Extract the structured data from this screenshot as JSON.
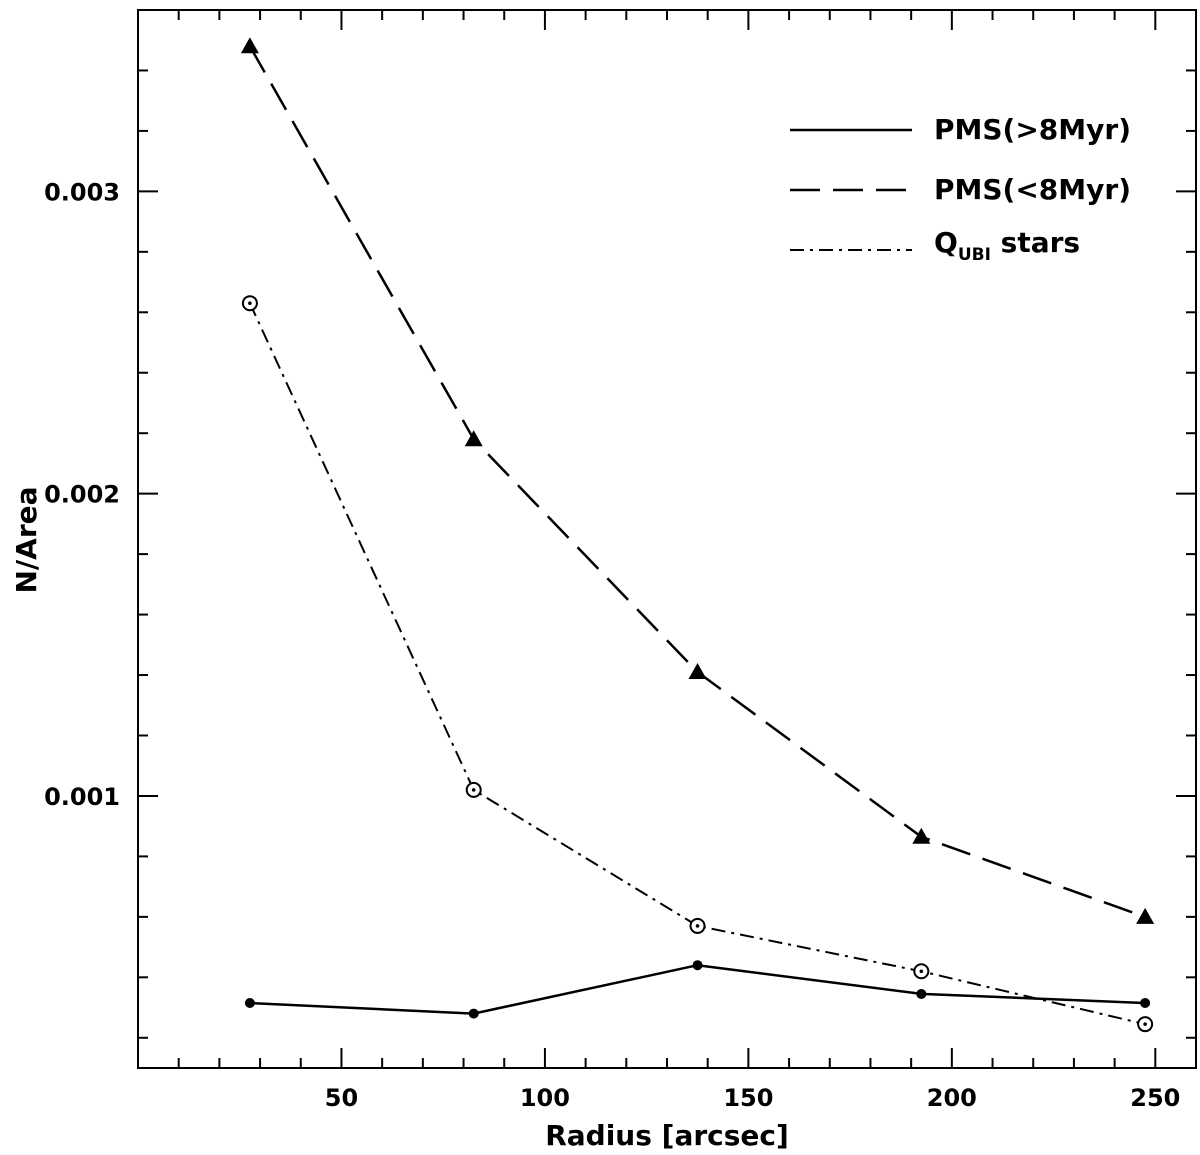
{
  "chart_data": {
    "type": "line",
    "title": "",
    "xlabel": "Radius [arcsec]",
    "ylabel": "N/Area",
    "xlim": [
      0,
      260
    ],
    "ylim": [
      0.0001,
      0.0036
    ],
    "x_ticks": [
      50,
      100,
      150,
      200,
      250
    ],
    "x_tick_labels": [
      "50",
      "100",
      "150",
      "200",
      "250"
    ],
    "y_ticks": [
      0.001,
      0.002,
      0.003
    ],
    "y_tick_labels": [
      "0.001",
      "0.002",
      "0.003"
    ],
    "grid": false,
    "legend_position": "top-right",
    "x": [
      27.5,
      82.5,
      137.5,
      192.5,
      247.5
    ],
    "series": [
      {
        "name": "PMS(>8Myr)",
        "line_style": "solid",
        "marker": "filled-circle",
        "values": [
          0.000315,
          0.00028,
          0.00044,
          0.000345,
          0.000315
        ]
      },
      {
        "name": "PMS(<8Myr)",
        "line_style": "dashed",
        "marker": "filled-triangle",
        "values": [
          0.00348,
          0.00218,
          0.00141,
          0.000865,
          0.0006
        ]
      },
      {
        "name_main": "Q",
        "name_sub": "UBI",
        "name_rest": " stars",
        "line_style": "dash-dot",
        "marker": "open-circle",
        "values": [
          0.00263,
          0.00102,
          0.00057,
          0.00042,
          0.000245
        ]
      }
    ]
  }
}
